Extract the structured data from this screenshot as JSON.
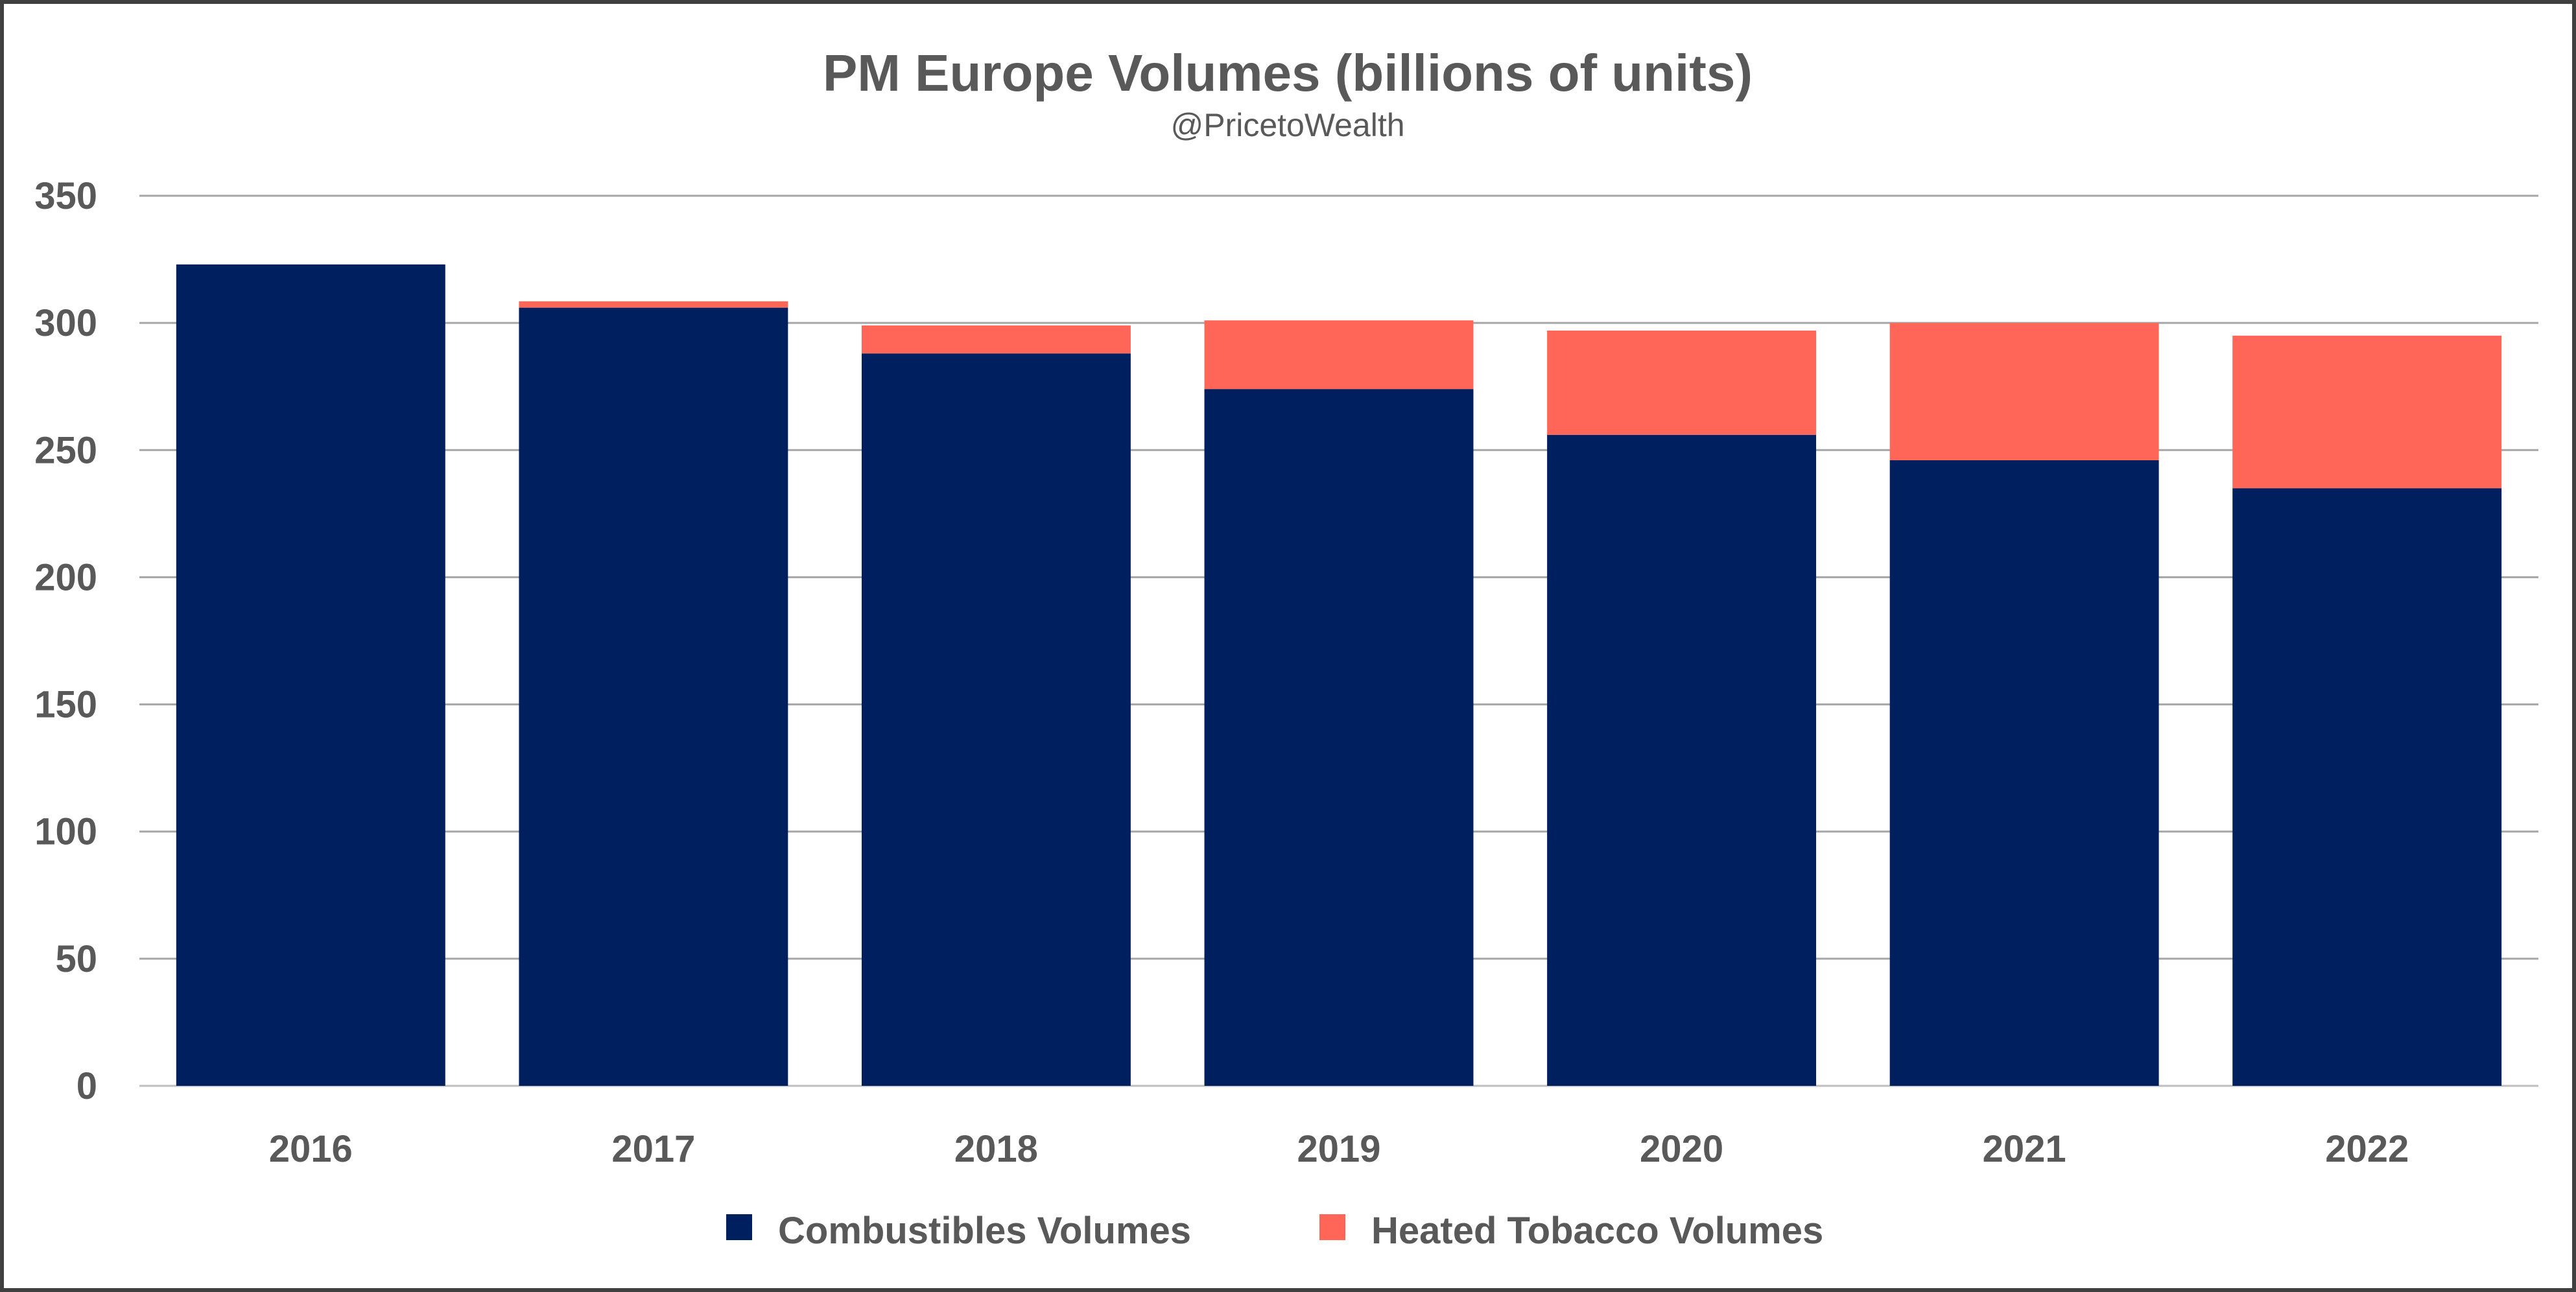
{
  "chart_data": {
    "type": "bar",
    "stacked": true,
    "title": "PM Europe Volumes (billions of units)",
    "subtitle": "@PricetoWealth",
    "xlabel": "",
    "ylabel": "",
    "ylim": [
      0,
      350
    ],
    "yticks": [
      "0",
      "50",
      "100",
      "150",
      "200",
      "250",
      "300",
      "350"
    ],
    "categories": [
      "2016",
      "2017",
      "2018",
      "2019",
      "2020",
      "2021",
      "2022"
    ],
    "series": [
      {
        "name": "Combustibles Volumes",
        "color": "#001F5F",
        "values": [
          323,
          306,
          288,
          274,
          256,
          246,
          235
        ]
      },
      {
        "name": "Heated Tobacco Volumes",
        "color": "#FF6658",
        "values": [
          0,
          2.5,
          11,
          27,
          41,
          54,
          60
        ]
      }
    ],
    "grid": true,
    "legend": "bottom"
  }
}
